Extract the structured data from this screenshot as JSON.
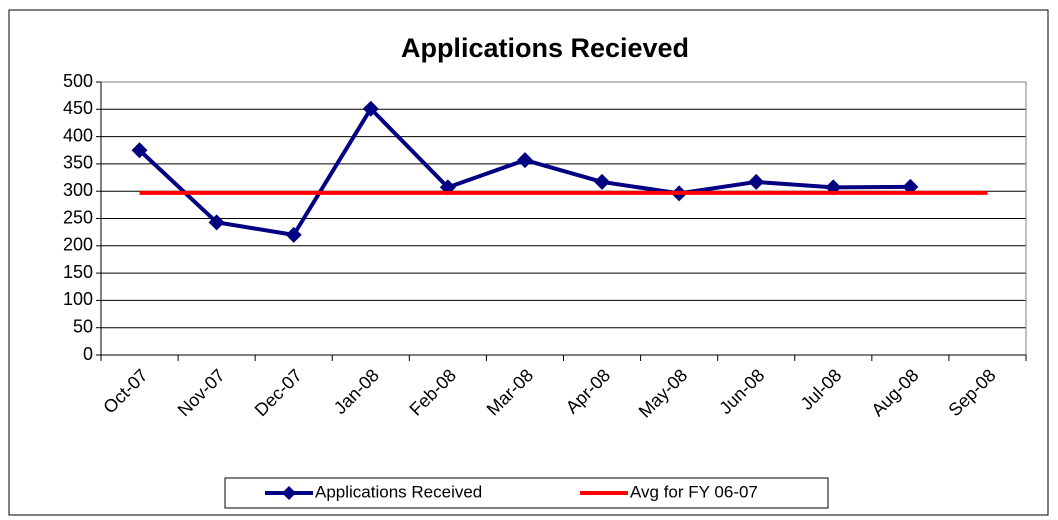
{
  "chart_data": {
    "type": "line",
    "title": "Applications Recieved",
    "categories": [
      "Oct-07",
      "Nov-07",
      "Dec-07",
      "Jan-08",
      "Feb-08",
      "Mar-08",
      "Apr-08",
      "May-08",
      "Jun-08",
      "Jul-08",
      "Aug-08",
      "Sep-08"
    ],
    "series": [
      {
        "name": "Applications Received",
        "color": "#000080",
        "values": [
          375,
          243,
          220,
          451,
          307,
          357,
          317,
          296,
          317,
          307,
          308,
          null
        ]
      },
      {
        "name": "Avg for FY 06-07",
        "color": "#ff0000",
        "values": [
          297,
          297,
          297,
          297,
          297,
          297,
          297,
          297,
          297,
          297,
          297,
          297
        ]
      }
    ],
    "ylim": [
      0,
      500
    ],
    "yticks": [
      0,
      50,
      100,
      150,
      200,
      250,
      300,
      350,
      400,
      450,
      500
    ],
    "grid": true,
    "legend": "bottom"
  }
}
